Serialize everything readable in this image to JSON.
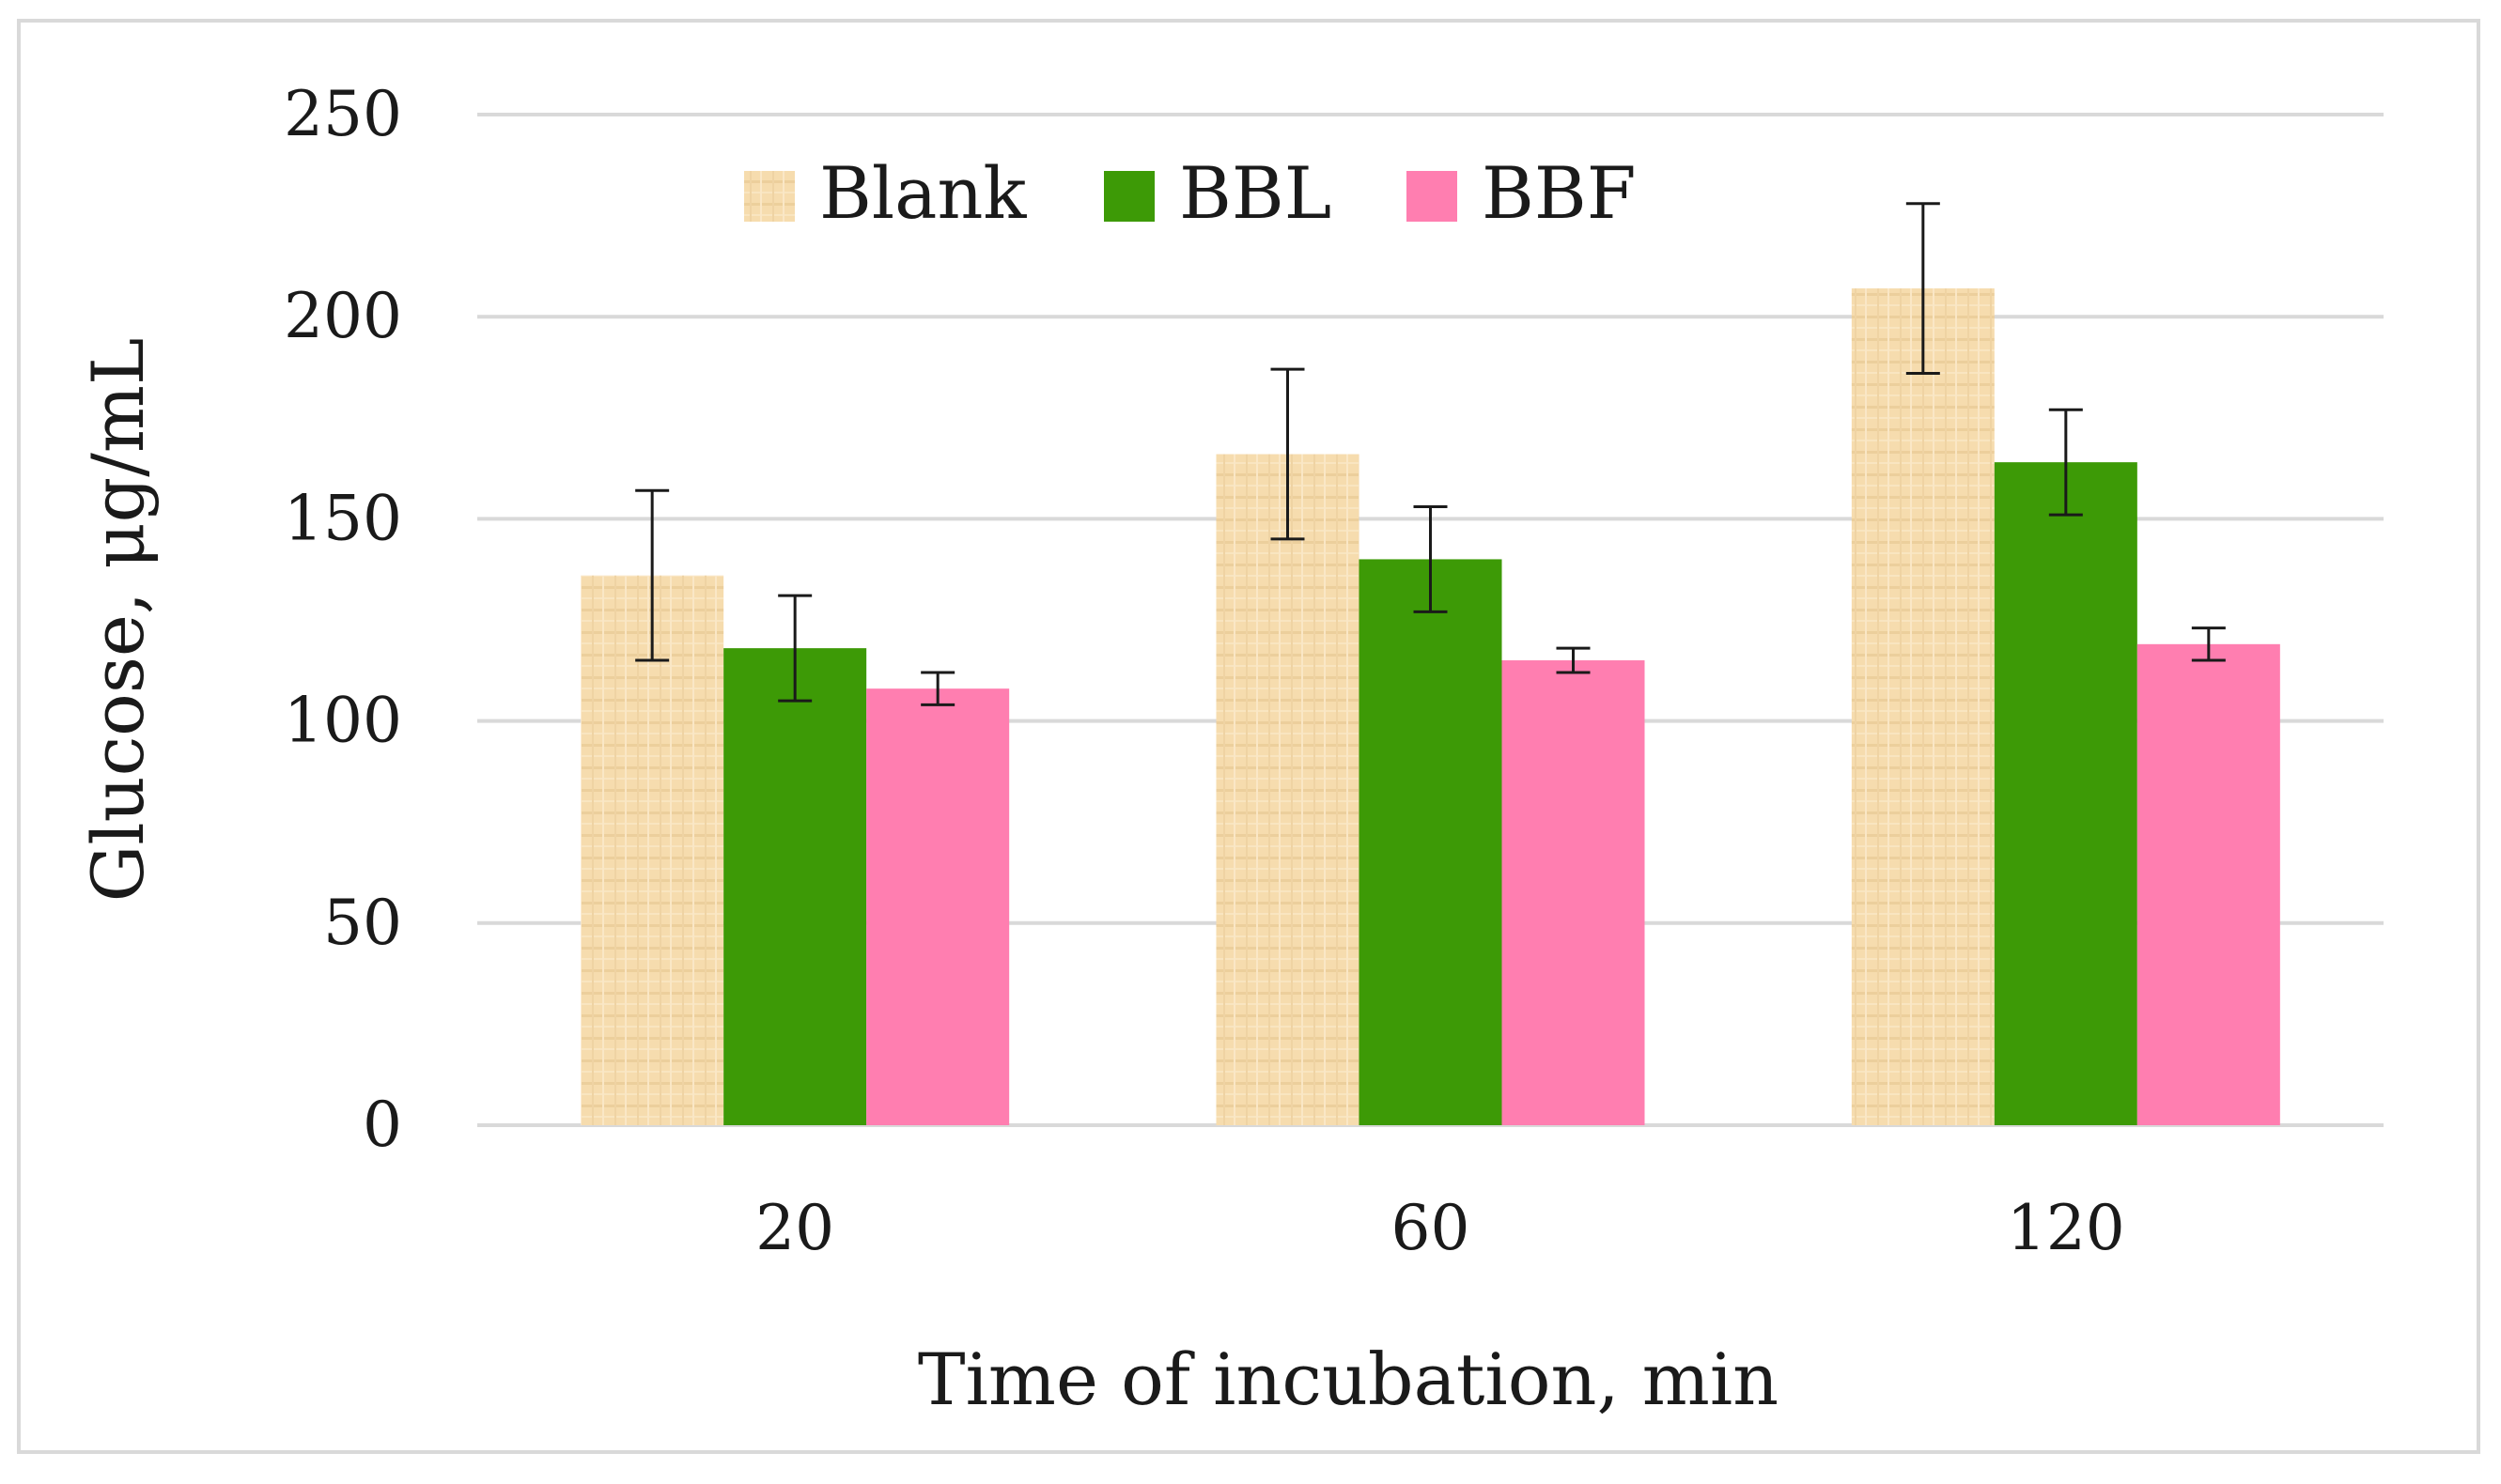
{
  "chart_data": {
    "type": "bar",
    "title": "",
    "xlabel": "Time of incubation, min",
    "ylabel": "Glucose, μg/mL",
    "categories": [
      "20",
      "60",
      "120"
    ],
    "ylim": [
      0,
      250
    ],
    "yticks": [
      0,
      50,
      100,
      150,
      200,
      250
    ],
    "grid": true,
    "legend_position": "top",
    "series": [
      {
        "name": "Blank",
        "color": "#f5d9a8",
        "values": [
          136,
          166,
          207
        ],
        "errors": [
          21,
          21,
          21
        ]
      },
      {
        "name": "BBL",
        "color": "#3d9a06",
        "values": [
          118,
          140,
          164
        ],
        "errors": [
          13,
          13,
          13
        ]
      },
      {
        "name": "BBF",
        "color": "#ff7eb0",
        "values": [
          108,
          115,
          119
        ],
        "errors": [
          4,
          3,
          4
        ]
      }
    ]
  }
}
